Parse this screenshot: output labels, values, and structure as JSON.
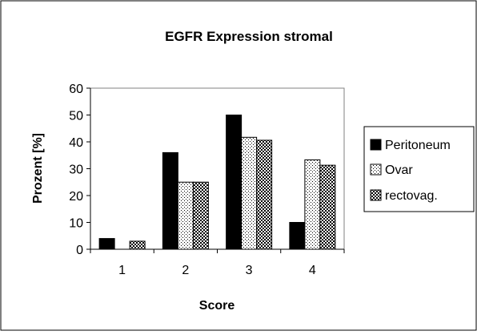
{
  "chart_data": {
    "type": "bar",
    "title": "EGFR Expression stromal",
    "xlabel": "Score",
    "ylabel": "Prozent [%]",
    "categories": [
      "1",
      "2",
      "3",
      "4"
    ],
    "ylim": [
      0,
      60
    ],
    "yticks": [
      "0",
      "10",
      "20",
      "30",
      "40",
      "50",
      "60"
    ],
    "grid": false,
    "legend_position": "right",
    "series": [
      {
        "name": "Peritoneum",
        "values": [
          4,
          36,
          50,
          10
        ],
        "fill": "solid-black"
      },
      {
        "name": "Ovar",
        "values": [
          0,
          25,
          41.7,
          33.3
        ],
        "fill": "fine-dots"
      },
      {
        "name": "rectovag.",
        "values": [
          3,
          25,
          40.6,
          31.3
        ],
        "fill": "checker"
      }
    ]
  }
}
